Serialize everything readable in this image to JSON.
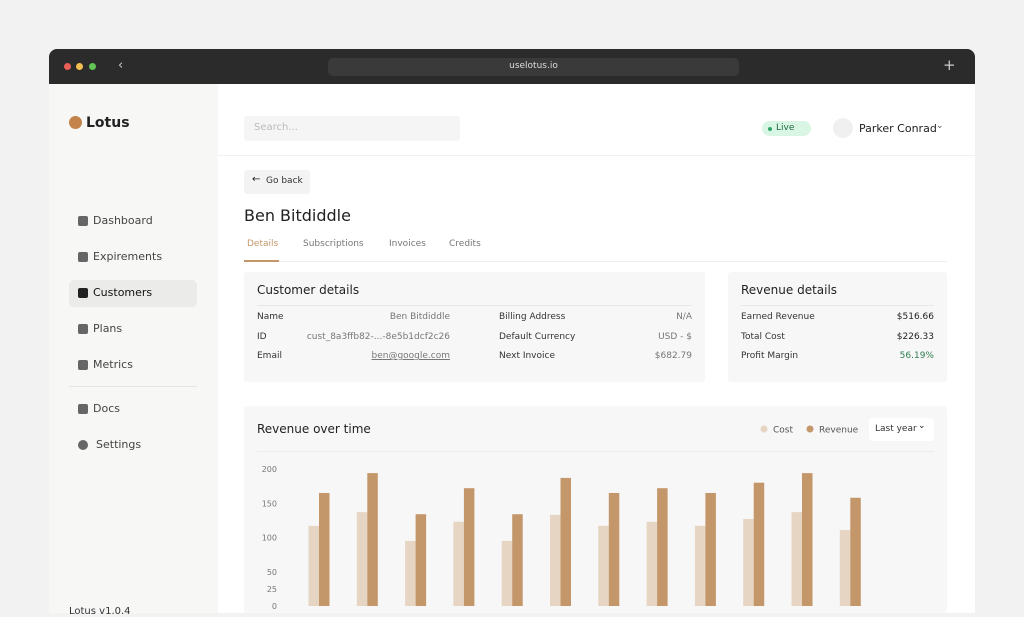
{
  "browser": {
    "url": "uselotus.io"
  },
  "sidebar": {
    "logo": "Lotus",
    "nav": [
      "Dashboard",
      "Expirements",
      "Customers",
      "Plans",
      "Metrics",
      "Docs",
      "Settings"
    ],
    "version": "Lotus v1.0.4"
  },
  "header": {
    "search_placeholder": "Search...",
    "status": "Live",
    "user": "Parker Conrad"
  },
  "back": "Go back",
  "customer_name": "Ben Bitdiddle",
  "tabs": [
    "Details",
    "Subscriptions",
    "Invoices",
    "Credits"
  ],
  "customer_details": {
    "title": "Customer details",
    "fields": [
      [
        "Name",
        "Ben Bitdiddle"
      ],
      [
        "ID",
        "cust_8a3ffb82-...-8e5b1dcf2c26"
      ],
      [
        "Email",
        "ben@google.com"
      ]
    ],
    "billing": [
      [
        "Billing Address",
        "N/A"
      ],
      [
        "Default Currency",
        "USD - $"
      ],
      [
        "Next Invoice",
        "$682.79"
      ]
    ]
  },
  "revenue_details": {
    "title": "Revenue details",
    "rows": [
      [
        "Earned Revenue",
        "$516.66"
      ],
      [
        "Total Cost",
        "$226.33"
      ],
      [
        "Profit Margin",
        "56.19%"
      ]
    ]
  },
  "chart_data": {
    "type": "bar",
    "title": "Revenue over time",
    "range_selector": "Last year",
    "series": [
      {
        "name": "Cost",
        "color": "#e6d5c3",
        "values": [
          117,
          137,
          95,
          123,
          95,
          133,
          117,
          123,
          117,
          127,
          137,
          111
        ]
      },
      {
        "name": "Revenue",
        "color": "#c4976a",
        "values": [
          165,
          194,
          134,
          172,
          134,
          187,
          165,
          172,
          165,
          180,
          194,
          158
        ]
      }
    ],
    "ylim": [
      0,
      200
    ],
    "yticks": [
      0,
      25,
      50,
      100,
      150,
      200
    ],
    "grid": false
  }
}
